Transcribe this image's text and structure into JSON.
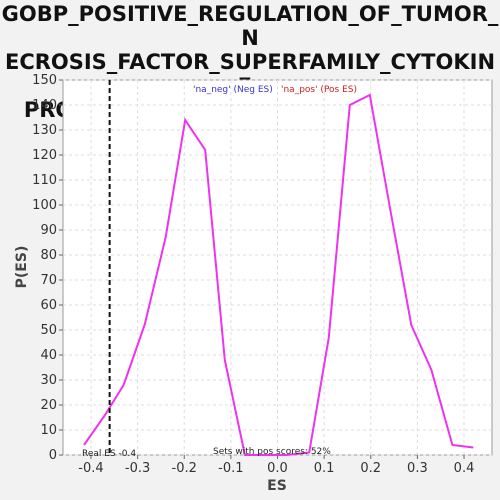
{
  "chart_data": {
    "type": "line",
    "title_lines": [
      "GOBP_POSITIVE_REGULATION_OF_TUMOR_N",
      "ECROSIS_FACTOR_SUPERFAMILY_CYTOKINE_",
      "PRODUCTION: Random ES distribution"
    ],
    "xlabel": "ES",
    "ylabel": "P(ES)",
    "xlim": [
      -0.46,
      0.46
    ],
    "ylim": [
      0,
      150
    ],
    "x_ticks": [
      -0.4,
      -0.3,
      -0.2,
      -0.1,
      0.0,
      0.1,
      0.2,
      0.3,
      0.4
    ],
    "x_tick_labels": [
      "-0.4",
      "-0.3",
      "-0.2",
      "-0.1",
      "0.0",
      "0.1",
      "0.2",
      "0.3",
      "0.4"
    ],
    "y_ticks": [
      0,
      10,
      20,
      30,
      40,
      50,
      60,
      70,
      80,
      90,
      100,
      110,
      120,
      130,
      140,
      150
    ],
    "grid": true,
    "legend": [
      {
        "text": "'na_neg' (Neg ES)",
        "color": "#3333cc"
      },
      {
        "text": "'na_pos' (Pos ES)",
        "color": "#cc2222"
      }
    ],
    "series": [
      {
        "color": "#ee33ee",
        "x": [
          -0.415,
          -0.37,
          -0.33,
          -0.285,
          -0.24,
          -0.198,
          -0.155,
          -0.113,
          -0.07,
          -0.025,
          0.02,
          0.068,
          0.11,
          0.155,
          0.198,
          0.243,
          0.287,
          0.33,
          0.375,
          0.42
        ],
        "y": [
          4,
          16,
          28,
          52,
          87,
          134,
          122,
          38,
          0,
          0,
          0,
          1,
          47,
          140,
          144,
          97,
          52,
          34,
          4,
          3
        ]
      }
    ],
    "real_es": -0.36,
    "real_es_label": "Real ES -0.4",
    "annotation": "Sets with pos scores: 52%"
  }
}
